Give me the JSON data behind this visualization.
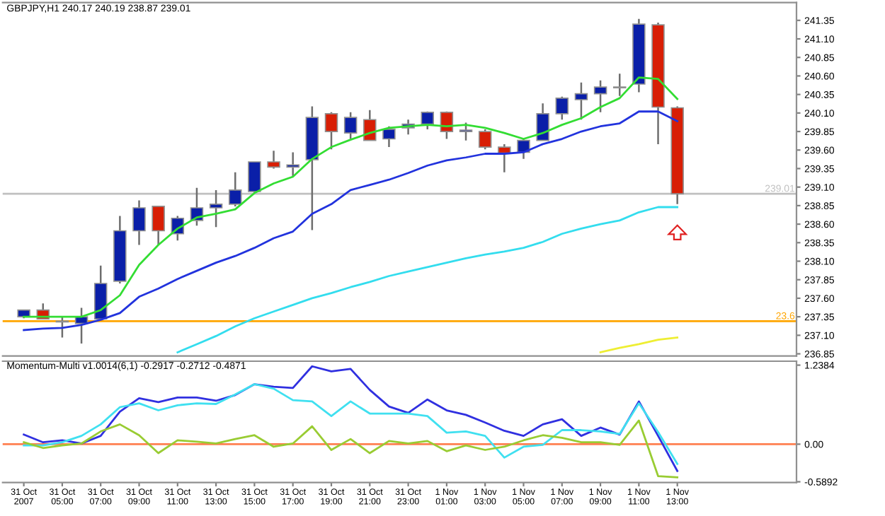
{
  "chart_data": [
    {
      "type": "candlestick",
      "title": "GBPJPY,H1 240.17 240.19 238.87 239.01",
      "categories": [
        null,
        null,
        null,
        null,
        null,
        null,
        null,
        null,
        null,
        null,
        null,
        null,
        null,
        null,
        null,
        null,
        null,
        null,
        null,
        null,
        null,
        null,
        null,
        null,
        null,
        null,
        null,
        null,
        null,
        null,
        null,
        null,
        null,
        null,
        null
      ],
      "annotations": [
        {
          "text": "23.6",
          "y": 237.29
        }
      ],
      "ohlc": [
        [
          237.35,
          237.44,
          237.33,
          237.44
        ],
        [
          237.44,
          237.53,
          237.32,
          237.32
        ],
        [
          237.29,
          237.35,
          237.07,
          237.28
        ],
        [
          237.26,
          237.47,
          236.99,
          237.35
        ],
        [
          237.32,
          238.04,
          237.32,
          237.8
        ],
        [
          237.83,
          238.71,
          237.8,
          238.51
        ],
        [
          238.51,
          238.92,
          238.32,
          238.82
        ],
        [
          238.84,
          238.85,
          238.32,
          238.51
        ],
        [
          238.47,
          238.71,
          238.38,
          238.68
        ],
        [
          238.65,
          239.09,
          238.58,
          238.82
        ],
        [
          238.82,
          239.06,
          238.56,
          238.87
        ],
        [
          238.87,
          239.3,
          238.84,
          239.06
        ],
        [
          239.04,
          239.44,
          239.02,
          239.44
        ],
        [
          239.44,
          239.59,
          239.35,
          239.37
        ],
        [
          239.37,
          239.57,
          239.24,
          239.4
        ],
        [
          239.47,
          240.19,
          238.52,
          240.04
        ],
        [
          240.09,
          240.11,
          239.61,
          239.85
        ],
        [
          239.83,
          240.11,
          239.75,
          240.04
        ],
        [
          240.01,
          240.14,
          239.73,
          239.73
        ],
        [
          239.75,
          239.92,
          239.64,
          239.88
        ],
        [
          239.9,
          240.01,
          239.81,
          239.95
        ],
        [
          239.95,
          240.12,
          239.88,
          240.11
        ],
        [
          240.11,
          240.12,
          239.75,
          239.85
        ],
        [
          239.85,
          239.97,
          239.73,
          239.87
        ],
        [
          239.85,
          239.88,
          239.61,
          239.64
        ],
        [
          239.64,
          239.68,
          239.3,
          239.56
        ],
        [
          239.57,
          239.75,
          239.48,
          239.73
        ],
        [
          239.73,
          240.23,
          239.73,
          240.09
        ],
        [
          240.09,
          240.32,
          240.01,
          240.3
        ],
        [
          240.28,
          240.51,
          240.01,
          240.36
        ],
        [
          240.36,
          240.54,
          240.11,
          240.45
        ],
        [
          240.44,
          240.63,
          240.33,
          240.45
        ],
        [
          240.49,
          241.37,
          240.38,
          241.3
        ],
        [
          241.29,
          241.32,
          239.68,
          240.18
        ],
        [
          240.17,
          240.19,
          238.87,
          239.01
        ]
      ],
      "colors": [
        "#0a1fa8",
        "#d81e05",
        "#d81e05",
        "#0a1fa8",
        "#0a1fa8",
        "#0a1fa8",
        "#0a1fa8",
        "#d81e05",
        "#0a1fa8",
        "#0a1fa8",
        "#0a1fa8",
        "#0a1fa8",
        "#0a1fa8",
        "#d81e05",
        "#0a1fa8",
        "#0a1fa8",
        "#d81e05",
        "#0a1fa8",
        "#d81e05",
        "#0a1fa8",
        "#0a1fa8",
        "#0a1fa8",
        "#d81e05",
        "#0a1fa8",
        "#d81e05",
        "#d81e05",
        "#0a1fa8",
        "#0a1fa8",
        "#0a1fa8",
        "#0a1fa8",
        "#0a1fa8",
        "#0a1fa8",
        "#0a1fa8",
        "#d81e05",
        "#d81e05"
      ],
      "series": [
        {
          "type": "line",
          "color": "#33dd33",
          "values": [
            237.35,
            237.35,
            237.35,
            237.35,
            237.44,
            237.64,
            238.05,
            238.32,
            238.54,
            238.69,
            238.74,
            238.8,
            239.02,
            239.15,
            239.24,
            239.48,
            239.64,
            239.74,
            239.83,
            239.9,
            239.92,
            239.94,
            239.92,
            239.94,
            239.9,
            239.83,
            239.75,
            239.83,
            239.94,
            240.03,
            240.18,
            240.3,
            240.58,
            240.56,
            240.29
          ]
        },
        {
          "type": "line",
          "color": "#2233dd",
          "values": [
            237.17,
            237.19,
            237.2,
            237.24,
            237.31,
            237.4,
            237.62,
            237.73,
            237.86,
            237.97,
            238.08,
            238.17,
            238.28,
            238.41,
            238.5,
            238.74,
            238.87,
            239.06,
            239.13,
            239.2,
            239.29,
            239.39,
            239.46,
            239.5,
            239.55,
            239.55,
            239.57,
            239.68,
            239.75,
            239.85,
            239.92,
            239.96,
            240.12,
            240.12,
            239.99
          ]
        },
        {
          "type": "line",
          "color": "#33ddee",
          "values": [
            null,
            null,
            null,
            null,
            null,
            null,
            null,
            null,
            236.87,
            236.98,
            237.09,
            237.22,
            237.33,
            237.42,
            237.51,
            237.6,
            237.67,
            237.75,
            237.82,
            237.9,
            237.96,
            238.02,
            238.08,
            238.14,
            238.19,
            238.23,
            238.28,
            238.36,
            238.47,
            238.54,
            238.6,
            238.65,
            238.76,
            238.83,
            238.83
          ]
        },
        {
          "type": "line",
          "color": "#eeee33",
          "values": [
            null,
            null,
            null,
            null,
            null,
            null,
            null,
            null,
            null,
            null,
            null,
            null,
            null,
            null,
            null,
            null,
            null,
            null,
            null,
            null,
            null,
            null,
            null,
            null,
            null,
            null,
            null,
            null,
            null,
            null,
            236.87,
            236.93,
            236.98,
            237.04,
            237.07
          ]
        }
      ],
      "ylim": [
        236.82,
        241.59
      ],
      "yticks": [
        236.85,
        {
          "value": 237.1,
          "label": "237.10"
        },
        237.35,
        {
          "value": 237.6,
          "label": "237.60"
        },
        237.85,
        {
          "value": 238.1,
          "label": "238.10"
        },
        238.35,
        {
          "value": 238.6,
          "label": "238.60"
        },
        238.85,
        {
          "value": 239.1,
          "label": "239.10"
        },
        239.35,
        {
          "value": 239.6,
          "label": "239.60"
        },
        239.85,
        {
          "value": 240.1,
          "label": "240.10"
        },
        240.35,
        {
          "value": 240.6,
          "label": "240.60"
        },
        240.85,
        {
          "value": 241.1,
          "label": "241.10"
        },
        241.35
      ],
      "ref_lines": [
        {
          "axis": "y",
          "value": 239.01,
          "label": "239.01",
          "color": "#c0c0c0",
          "line_style": "solid"
        },
        {
          "axis": "y",
          "value": 237.29,
          "color": "#ffa500",
          "line_style": "solid"
        }
      ],
      "tick_labels": "y",
      "grid": false,
      "legend": false,
      "marker": "none",
      "line_style": "solid"
    },
    {
      "type": "line",
      "title": "Momentum-Multi v1.0014(6,1) -0.2917 -0.2712 -0.4871",
      "categories": [
        "31 Oct 2007",
        null,
        "31 Oct 05:00",
        null,
        "31 Oct 07:00",
        null,
        "31 Oct 09:00",
        null,
        "31 Oct 11:00",
        null,
        "31 Oct 13:00",
        null,
        "31 Oct 15:00",
        null,
        "31 Oct 17:00",
        null,
        "31 Oct 19:00",
        null,
        "31 Oct 21:00",
        null,
        "31 Oct 23:00",
        null,
        "1 Nov 01:00",
        null,
        "1 Nov 03:00",
        null,
        "1 Nov 05:00",
        null,
        "1 Nov 07:00",
        null,
        "1 Nov 09:00",
        null,
        "1 Nov 11:00",
        null,
        "1 Nov 13:00"
      ],
      "series": [
        {
          "color": "#3030e0",
          "values": [
            0.15,
            0.03,
            0.06,
            0.01,
            0.13,
            0.51,
            0.72,
            0.66,
            0.73,
            0.73,
            0.68,
            0.77,
            0.94,
            0.9,
            0.88,
            1.22,
            1.14,
            1.18,
            0.85,
            0.59,
            0.49,
            0.7,
            0.53,
            0.46,
            0.34,
            0.21,
            0.13,
            0.31,
            0.39,
            0.13,
            0.26,
            0.15,
            0.67,
            0.13,
            -0.42
          ]
        },
        {
          "color": "#40e0f0",
          "values": [
            -0.02,
            -0.02,
            0.03,
            0.13,
            0.31,
            0.58,
            0.64,
            0.53,
            0.61,
            0.64,
            0.63,
            0.78,
            0.94,
            0.87,
            0.69,
            0.67,
            0.44,
            0.67,
            0.48,
            0.48,
            0.48,
            0.44,
            0.18,
            0.2,
            0.13,
            -0.21,
            -0.04,
            -0.01,
            0.22,
            0.22,
            0.2,
            0.16,
            0.64,
            0.19,
            -0.31
          ]
        },
        {
          "color": "#99cc33",
          "values": [
            0.03,
            -0.06,
            -0.02,
            0.01,
            0.2,
            0.31,
            0.14,
            -0.14,
            0.06,
            0.04,
            0.01,
            0.08,
            0.14,
            -0.04,
            0.01,
            0.28,
            -0.09,
            0.08,
            -0.14,
            0.05,
            0.01,
            0.05,
            -0.11,
            -0.02,
            -0.09,
            -0.04,
            0.06,
            0.14,
            0.1,
            0.03,
            0.03,
            -0.01,
            0.37,
            -0.5,
            -0.52
          ]
        }
      ],
      "ylim": [
        -0.6,
        1.3
      ],
      "yticks": [
        -0.5892,
        {
          "value": 0,
          "label": "0.00"
        },
        1.2384
      ],
      "ref_lines": [
        {
          "axis": "y",
          "value": 0,
          "color": "#ff7f50",
          "line_style": "solid"
        }
      ],
      "grid": false,
      "legend": false,
      "marker": "none",
      "line_style": "solid"
    }
  ]
}
